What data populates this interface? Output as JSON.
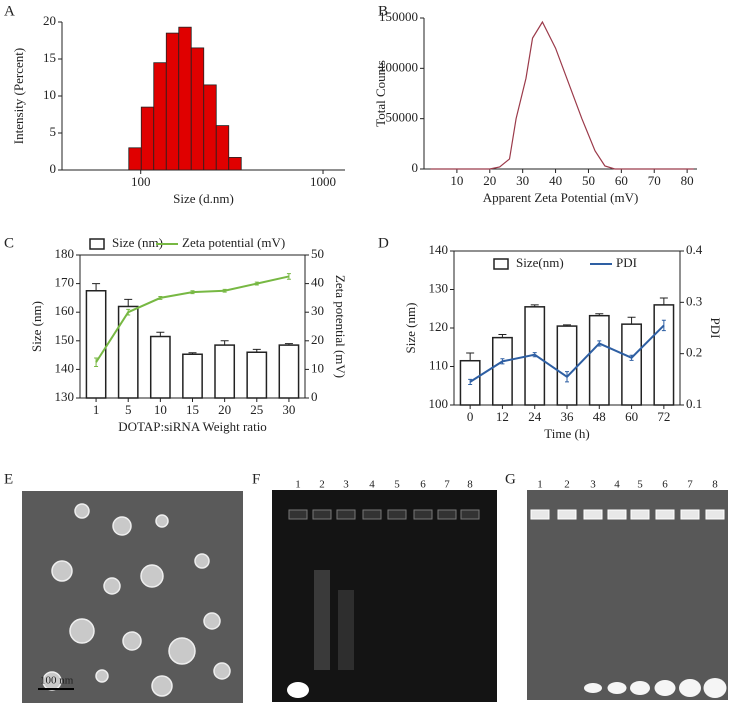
{
  "chart_data": [
    {
      "type": "histogram",
      "label": "A",
      "xlabel": "Size (d.nm)",
      "ylabel": "Intensity (Percent)",
      "bins": [
        86,
        100.7,
        117.9,
        138.1,
        161.7,
        189.3,
        221.7,
        259.6,
        304,
        356
      ],
      "values": [
        3,
        8.5,
        14.5,
        18.5,
        19.3,
        16.5,
        11.5,
        6,
        1.7
      ],
      "color": "#e00000",
      "log_x": true,
      "xlim": [
        37,
        1320
      ],
      "xticks": [
        100,
        1000
      ],
      "ylim": [
        0,
        20
      ],
      "yticks": [
        0,
        5,
        10,
        15,
        20
      ]
    },
    {
      "type": "line",
      "label": "B",
      "xlabel": "Apparent Zeta Potential (mV)",
      "ylabel": "Total Counts",
      "x": [
        2,
        5,
        8,
        11,
        14,
        17,
        20,
        23,
        26,
        28,
        31,
        33,
        36,
        40,
        44,
        48,
        52,
        55,
        58,
        61,
        64,
        67,
        70,
        73,
        76,
        79,
        82
      ],
      "values": [
        0,
        0,
        0,
        0,
        0,
        0,
        0,
        2000,
        10000,
        50000,
        90000,
        130000,
        146000,
        120000,
        85000,
        50000,
        18000,
        3000,
        0,
        0,
        0,
        0,
        0,
        0,
        0,
        0,
        0
      ],
      "color": "#9b3a4a",
      "xlim": [
        0,
        83
      ],
      "xticks": [
        10,
        20,
        30,
        40,
        50,
        60,
        70,
        80
      ],
      "ylim": [
        0,
        150000
      ],
      "yticks": [
        0,
        50000,
        100000,
        150000
      ]
    },
    {
      "type": "bar_line",
      "label": "C",
      "xlabel": "DOTAP:siRNA Weight ratio",
      "ylabel": "Size (nm)",
      "y2label": "Zeta potential (mV)",
      "categories": [
        "1",
        "5",
        "10",
        "15",
        "20",
        "25",
        "30"
      ],
      "series": [
        {
          "name": "Size (nm)",
          "color": "#ffffff",
          "values": [
            167.5,
            162,
            151.5,
            145.3,
            148.5,
            146,
            148.5
          ],
          "errors": [
            2.5,
            2.5,
            1.5,
            0.5,
            1.5,
            1,
            0.5
          ]
        },
        {
          "name": "Zeta potential (mV)",
          "color": "#77b843",
          "axis": "y2",
          "values": [
            12.5,
            30,
            35,
            37,
            37.5,
            40,
            42.5
          ],
          "errors": [
            1.5,
            1,
            0.5,
            0.5,
            0.5,
            0.5,
            1
          ]
        }
      ],
      "ylim": [
        130,
        180
      ],
      "yticks": [
        130,
        140,
        150,
        160,
        170,
        180
      ],
      "y2lim": [
        0,
        50
      ],
      "y2ticks": [
        0,
        10,
        20,
        30,
        40,
        50
      ]
    },
    {
      "type": "bar_line",
      "label": "D",
      "xlabel": "Time (h)",
      "ylabel": "Size (nm)",
      "y2label": "PDI",
      "categories": [
        "0",
        "12",
        "24",
        "36",
        "48",
        "60",
        "72"
      ],
      "series": [
        {
          "name": "Size(nm)",
          "color": "#ffffff",
          "values": [
            111.5,
            117.5,
            125.5,
            120.5,
            123.2,
            121,
            126
          ],
          "errors": [
            2,
            0.8,
            0.5,
            0.3,
            0.5,
            1.8,
            1.8
          ]
        },
        {
          "name": "PDI",
          "color": "#2e5fa3",
          "axis": "y2",
          "values": [
            0.145,
            0.185,
            0.198,
            0.155,
            0.22,
            0.192,
            0.255
          ],
          "errors": [
            0.005,
            0.005,
            0.004,
            0.01,
            0.005,
            0.005,
            0.01
          ]
        }
      ],
      "ylim": [
        100,
        140
      ],
      "yticks": [
        100,
        110,
        120,
        130,
        140
      ],
      "y2lim": [
        0.1,
        0.4
      ],
      "y2ticks": [
        0.1,
        0.2,
        0.3,
        0.4
      ]
    }
  ],
  "images": [
    {
      "label": "E",
      "scale_bar": "100 nm"
    },
    {
      "label": "F",
      "lanes": [
        "1",
        "2",
        "3",
        "4",
        "5",
        "6",
        "7",
        "8"
      ]
    },
    {
      "label": "G",
      "lanes": [
        "1",
        "2",
        "3",
        "4",
        "5",
        "6",
        "7",
        "8"
      ]
    }
  ]
}
